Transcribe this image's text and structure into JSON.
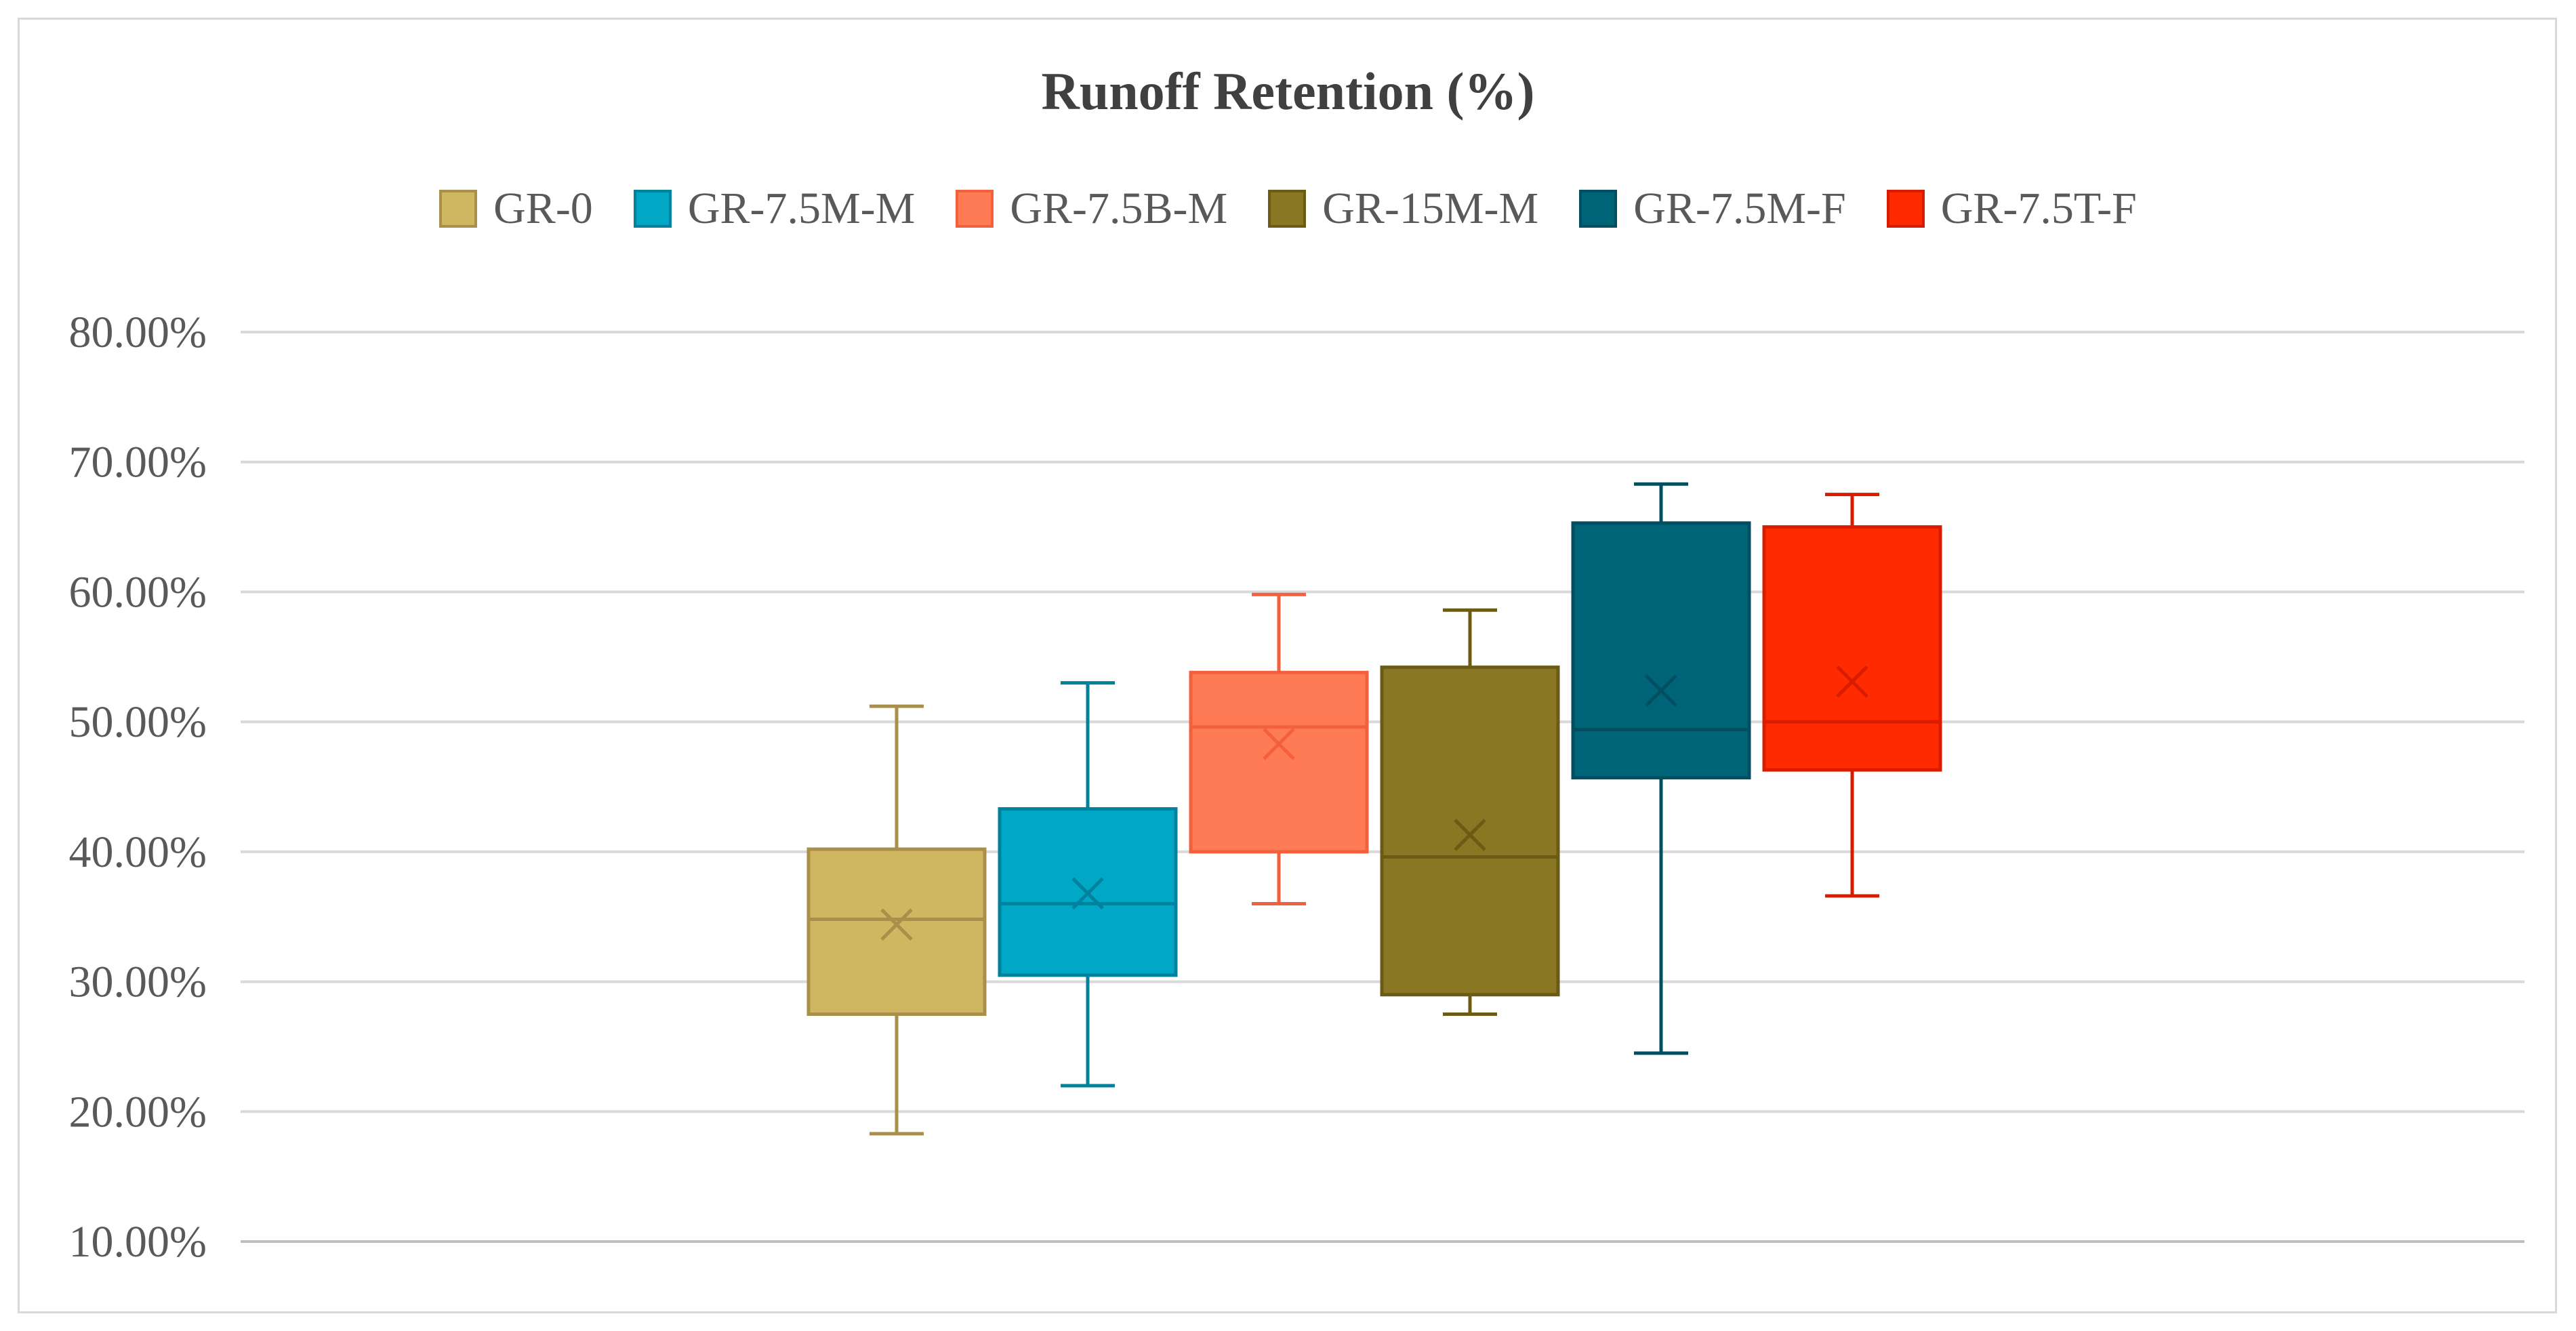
{
  "chart_data": {
    "type": "boxplot",
    "title": "Runoff Retention (%)",
    "xlabel": "",
    "ylabel": "",
    "ylim": [
      10,
      80
    ],
    "yticks": [
      "80.00%",
      "70.00%",
      "60.00%",
      "50.00%",
      "40.00%",
      "30.00%",
      "20.00%",
      "10.00%"
    ],
    "ytick_values": [
      80,
      70,
      60,
      50,
      40,
      30,
      20,
      10
    ],
    "grid": true,
    "legend_position": "top",
    "series": [
      {
        "name": "GR-0",
        "fill": "#cfb660",
        "stroke": "#a8904a",
        "whisker_low": 18.3,
        "q1": 27.5,
        "median": 34.8,
        "q3": 40.2,
        "whisker_high": 51.2,
        "mean": 34.4
      },
      {
        "name": "GR-7.5M-M",
        "fill": "#00a8c6",
        "stroke": "#00819c",
        "whisker_low": 22.0,
        "q1": 30.5,
        "median": 36.0,
        "q3": 43.3,
        "whisker_high": 53.0,
        "mean": 36.8
      },
      {
        "name": "GR-7.5B-M",
        "fill": "#ff7b56",
        "stroke": "#f2603c",
        "whisker_low": 36.0,
        "q1": 40.0,
        "median": 49.6,
        "q3": 53.8,
        "whisker_high": 59.8,
        "mean": 48.3
      },
      {
        "name": "GR-15M-M",
        "fill": "#8a7723",
        "stroke": "#6b5b14",
        "whisker_low": 27.5,
        "q1": 29.0,
        "median": 39.6,
        "q3": 54.2,
        "whisker_high": 58.6,
        "mean": 41.3
      },
      {
        "name": "GR-7.5M-F",
        "fill": "#006479",
        "stroke": "#004f60",
        "whisker_low": 24.5,
        "q1": 45.7,
        "median": 49.4,
        "q3": 65.3,
        "whisker_high": 68.3,
        "mean": 52.4
      },
      {
        "name": "GR-7.5T-F",
        "fill": "#ff2a00",
        "stroke": "#d81c00",
        "whisker_low": 36.6,
        "q1": 46.3,
        "median": 50.0,
        "q3": 65.0,
        "whisker_high": 67.5,
        "mean": 53.1
      }
    ]
  }
}
